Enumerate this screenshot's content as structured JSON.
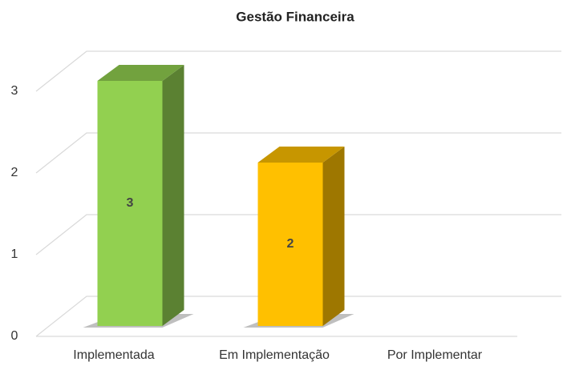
{
  "chart_data": {
    "type": "bar3d",
    "title": "Gestão Financeira",
    "categories": [
      "Implementada",
      "Em Implementação",
      "Por Implementar"
    ],
    "values": [
      3,
      2,
      0
    ],
    "colors": [
      "#92d050",
      "#ffc000",
      null
    ],
    "ylim": [
      0,
      3
    ],
    "yticks": [
      0,
      1,
      2,
      3
    ],
    "grid": true
  }
}
